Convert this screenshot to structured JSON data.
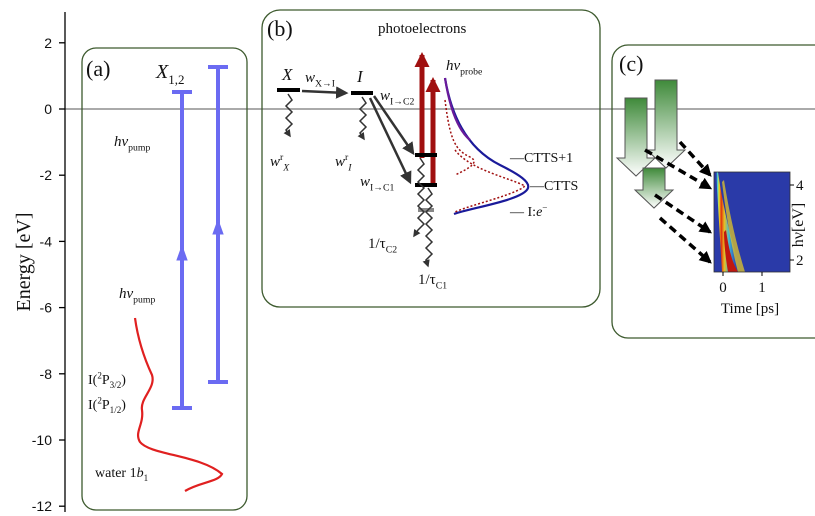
{
  "axis": {
    "label": "Energy [eV]",
    "ticks": [
      2,
      0,
      -2,
      -4,
      -6,
      -8,
      -10,
      -12
    ]
  },
  "panel_a": {
    "label": "(a)",
    "state": [
      {
        "text": "X"
      },
      {
        "sub": "1,2"
      }
    ],
    "pump_upper": [
      {
        "text": "hν"
      },
      {
        "sub": "pump"
      }
    ],
    "pump_lower": [
      {
        "text": "hν"
      },
      {
        "sub": "pump"
      }
    ],
    "level_upper": [
      {
        "text": "I("
      },
      {
        "sup": "2"
      },
      {
        "text": "P"
      },
      {
        "sub": "3/2"
      },
      {
        "text": ")"
      }
    ],
    "level_lower": [
      {
        "text": "I("
      },
      {
        "sup": "2"
      },
      {
        "text": "P"
      },
      {
        "sub": "1/2"
      },
      {
        "text": ")"
      }
    ],
    "band": [
      {
        "text": "water 1"
      },
      {
        "text": "b"
      },
      {
        "sub": "1"
      }
    ]
  },
  "panel_b": {
    "label": "(b)",
    "title": "photoelectrons",
    "probe": [
      {
        "text": "hν"
      },
      {
        "sub": "probe"
      }
    ],
    "state_x": [
      {
        "text": "X"
      }
    ],
    "rate_x_i": [
      {
        "text": "w"
      },
      {
        "sub": "X→I"
      }
    ],
    "state_i": [
      {
        "text": "I"
      }
    ],
    "rate_i_c2": [
      {
        "text": "w"
      },
      {
        "sub": "I→C2"
      }
    ],
    "rate_x_r": [
      {
        "text": "w"
      },
      {
        "sup": "r"
      },
      {
        "sub": "X"
      }
    ],
    "rate_i_r": [
      {
        "text": "w"
      },
      {
        "sup": "r"
      },
      {
        "sub": "I"
      }
    ],
    "rate_i_c1": [
      {
        "text": "w"
      },
      {
        "sub": "I→C1"
      }
    ],
    "decay_c2": [
      {
        "text": "1/τ"
      },
      {
        "sub": "C2"
      }
    ],
    "decay_c1": [
      {
        "text": "1/τ"
      },
      {
        "sub": "C1"
      }
    ],
    "peak_upper": [
      {
        "text": "—CTTS+1"
      }
    ],
    "peak_main": [
      {
        "text": "—CTTS"
      }
    ],
    "peak_lower": [
      {
        "text": "— I:"
      },
      {
        "text": "e"
      },
      {
        "sup": "−"
      }
    ]
  },
  "panel_c": {
    "label": "(c)",
    "y_label": "hν[eV]",
    "x_label": "Time [ps]",
    "y_ticks": [
      4,
      2
    ],
    "x_ticks": [
      0,
      1
    ]
  }
}
